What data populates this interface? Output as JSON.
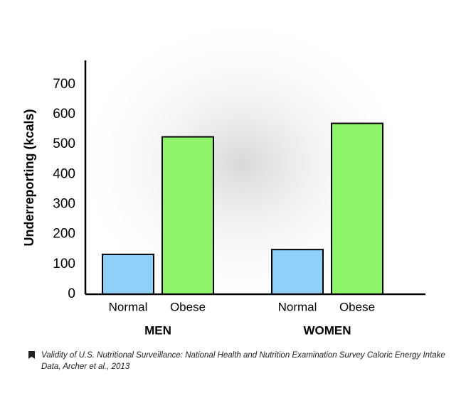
{
  "chart_data": {
    "type": "bar",
    "y_label": "Underreporting (kcals)",
    "categories": [
      "MEN",
      "WOMEN"
    ],
    "series": [
      {
        "name": "Normal",
        "color": "#8fd0f8",
        "values": [
          133,
          149
        ]
      },
      {
        "name": "Obese",
        "color": "#8ef56a",
        "values": [
          525,
          570
        ]
      }
    ],
    "ylim": [
      0,
      780
    ],
    "yticks": [
      0,
      100,
      200,
      300,
      400,
      500,
      600,
      700
    ],
    "source": "Validity of U.S. Nutritional Surveillance: National Health and Nutrition Examination Survey Caloric Energy Intake Data, Archer et al., 2013"
  }
}
